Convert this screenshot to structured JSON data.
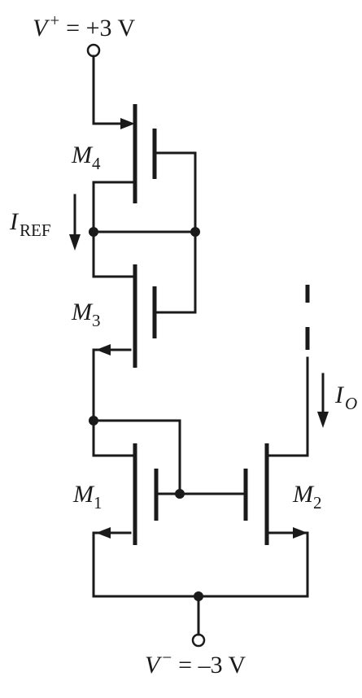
{
  "supply_positive": {
    "symbol": "V",
    "sign": "+",
    "value": "= +3 V"
  },
  "supply_negative": {
    "symbol": "V",
    "sign": "−",
    "value": "= –3 V"
  },
  "transistors": {
    "m1": {
      "letter": "M",
      "index": "1"
    },
    "m2": {
      "letter": "M",
      "index": "2"
    },
    "m3": {
      "letter": "M",
      "index": "3"
    },
    "m4": {
      "letter": "M",
      "index": "4"
    }
  },
  "currents": {
    "reference": {
      "letter": "I",
      "subscript": "REF"
    },
    "output": {
      "letter": "I",
      "subscript": "O"
    }
  }
}
